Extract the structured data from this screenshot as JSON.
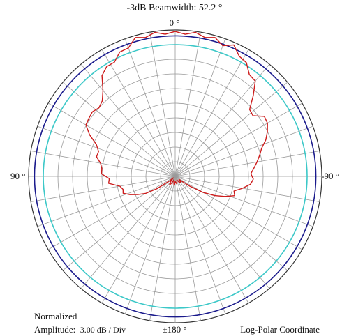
{
  "chart_data": {
    "type": "polar-line",
    "title": "-3dB Beamwidth: 52.2 °",
    "angle_labels": {
      "top": "0 °",
      "left": "90 °",
      "right": "-90 °",
      "bottom": "±180 °"
    },
    "scale": "log-polar",
    "normalized_label": "Normalized",
    "amplitude_label": "Amplitude:",
    "amplitude_value": "3.00 dB / Div",
    "coordinate_label": "Log-Polar Coordinate",
    "radial_divisions": 10,
    "db_per_division": 3,
    "angular_step_deg": 10,
    "reference_circles_db": [
      {
        "db": -1.2,
        "color": "#1a1a8c"
      },
      {
        "db": -3.0,
        "color": "#3cc8c8"
      }
    ],
    "series": [
      {
        "color": "#cc1a1a",
        "angle_deg": [
          0,
          4,
          8,
          12,
          16,
          20,
          24,
          28,
          32,
          36,
          40,
          44,
          48,
          52,
          56,
          60,
          64,
          68,
          72,
          76,
          80,
          84,
          88,
          92,
          96,
          100,
          104,
          108,
          112,
          116,
          120,
          124,
          128,
          130,
          135,
          140,
          145,
          150,
          155,
          160,
          165,
          170,
          175,
          180,
          185,
          190,
          195,
          200,
          205,
          210,
          215,
          220,
          225,
          230,
          232,
          236,
          240,
          244,
          248,
          252,
          256,
          260,
          264,
          268,
          272,
          276,
          280,
          284,
          288,
          292,
          296,
          300,
          304,
          308,
          312,
          316,
          320,
          324,
          328,
          332,
          336,
          340,
          344,
          348,
          352,
          356
        ],
        "gain_db": [
          -0.3,
          -0.8,
          -0.2,
          -0.9,
          -0.4,
          -2.0,
          -2.1,
          -3.5,
          -3.5,
          -4.5,
          -7.0,
          -8.5,
          -9.0,
          -8.5,
          -8.7,
          -8.9,
          -10.5,
          -12.6,
          -13.5,
          -13.4,
          -14.5,
          -14.9,
          -14.9,
          -16.5,
          -16.3,
          -18.5,
          -19.0,
          -18.8,
          -20.0,
          -21.5,
          -23.0,
          -25.5,
          -28.5,
          -29.5,
          -29.0,
          -28.5,
          -28.0,
          -28.2,
          -28.8,
          -29.3,
          -29.1,
          -28.4,
          -28.2,
          -29.0,
          -28.8,
          -28.5,
          -28.6,
          -28.9,
          -29.2,
          -29.0,
          -28.5,
          -28.4,
          -28.5,
          -29.0,
          -29.0,
          -26.5,
          -23.5,
          -21.0,
          -19.0,
          -17.2,
          -17.6,
          -16.0,
          -14.5,
          -14.0,
          -14.5,
          -13.8,
          -13.0,
          -12.2,
          -11.4,
          -10.0,
          -9.0,
          -8.2,
          -8.0,
          -9.8,
          -9.5,
          -7.0,
          -4.5,
          -4.2,
          -2.5,
          -2.1,
          -0.5,
          -1.5,
          -0.4,
          -0.9,
          -0.2,
          -0.8
        ]
      }
    ]
  }
}
